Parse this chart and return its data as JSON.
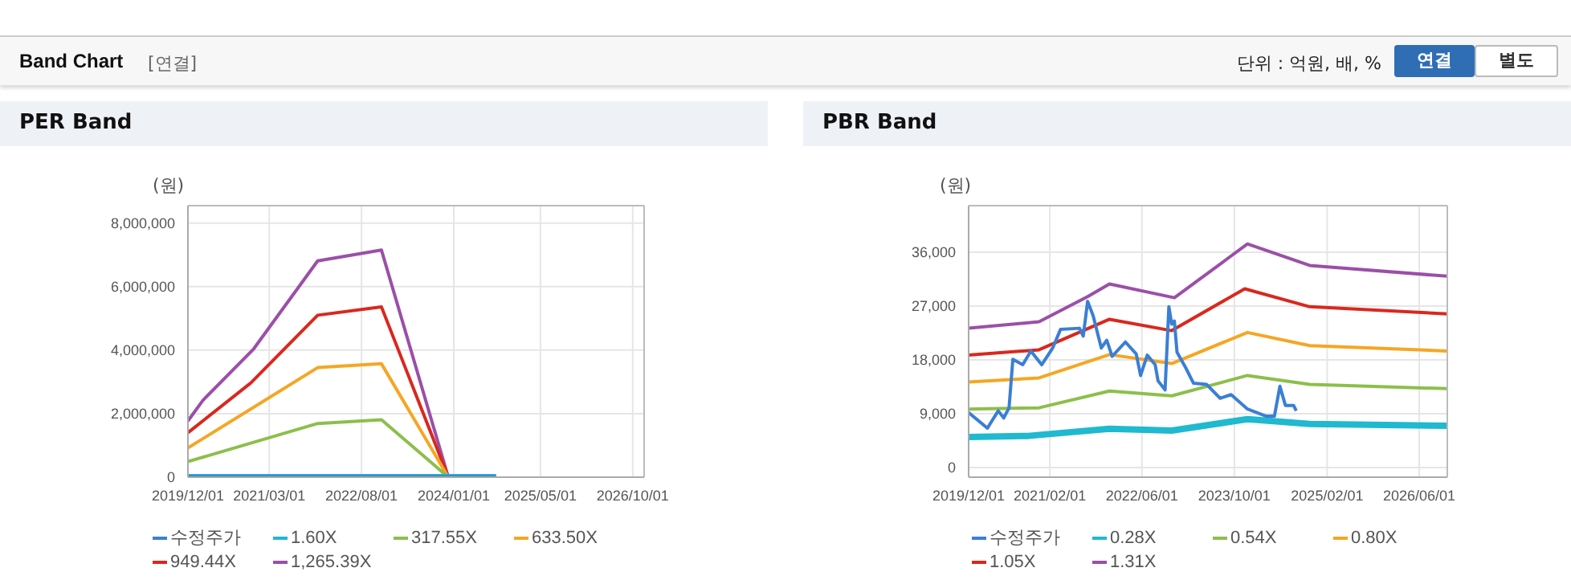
{
  "chart_data": [
    {
      "type": "line",
      "title": "PER Band",
      "ylabel": "(원)",
      "annotations": [
        "Band Chart",
        "[연결]",
        "단위 : 억원, 배, %",
        "연결",
        "별도"
      ],
      "xlim": [
        "2019-12-01",
        "2026-12-04"
      ],
      "xticks": [
        {
          "value": "2019-12-01",
          "label": "2019/12/01"
        },
        {
          "value": "2021-03-01",
          "label": "2021/03/01"
        },
        {
          "value": "2022-08-01",
          "label": "2022/08/01"
        },
        {
          "value": "2024-01-01",
          "label": "2024/01/01"
        },
        {
          "value": "2025-05-01",
          "label": "2025/05/01"
        },
        {
          "value": "2026-10-01",
          "label": "2026/10/01"
        }
      ],
      "ylim": [
        0,
        8550000
      ],
      "yticks": [
        0,
        {
          "value": 2000000,
          "label": "2,000,000"
        },
        {
          "value": 4000000,
          "label": "4,000,000"
        },
        {
          "value": 6000000,
          "label": "6,000,000"
        },
        {
          "value": 8000000,
          "label": "8,000,000"
        }
      ],
      "grid": true,
      "legend": "bottom",
      "marker": "none",
      "line_style": "solid",
      "series": [
        {
          "name": "수정주가",
          "color": "#3a7fd5",
          "x": [
            "2019-12-01",
            "2024-08-25"
          ],
          "values": [
            10000,
            10000
          ]
        },
        {
          "name": "1.60X",
          "color": "#1fb9d0",
          "x": [
            "2019-12-01",
            "2024-08-25"
          ],
          "values": [
            0,
            0
          ]
        },
        {
          "name": "317.55X",
          "color": "#8cbf4a",
          "x": [
            "2019-12-01",
            "2021-11-28",
            "2022-11-21",
            "2023-12-01"
          ],
          "values": [
            490000,
            1690000,
            1810000,
            0
          ]
        },
        {
          "name": "633.50X",
          "color": "#f5a623",
          "x": [
            "2019-12-01",
            "2021-11-28",
            "2022-11-21",
            "2023-12-01"
          ],
          "values": [
            920000,
            3450000,
            3570000,
            0
          ]
        },
        {
          "name": "949.44X",
          "color": "#d9281e",
          "x": [
            "2019-12-01",
            "2020-11-18",
            "2021-11-28",
            "2022-11-21",
            "2023-12-01"
          ],
          "values": [
            1400000,
            2970000,
            5100000,
            5360000,
            0
          ]
        },
        {
          "name": "1,265.39X",
          "color": "#9b4fa8",
          "x": [
            "2019-12-01",
            "2020-02-23",
            "2020-12-04",
            "2021-11-28",
            "2022-11-21",
            "2023-12-01"
          ],
          "values": [
            1770000,
            2420000,
            4040000,
            6810000,
            7150000,
            0
          ]
        }
      ]
    },
    {
      "type": "line",
      "title": "PBR Band",
      "ylabel": "(원)",
      "xlim": [
        "2019-12-01",
        "2026-10-27"
      ],
      "xticks": [
        {
          "value": "2019-12-01",
          "label": "2019/12/01"
        },
        {
          "value": "2021-02-01",
          "label": "2021/02/01"
        },
        {
          "value": "2022-06-01",
          "label": "2022/06/01"
        },
        {
          "value": "2023-10-01",
          "label": "2023/10/01"
        },
        {
          "value": "2025-02-01",
          "label": "2025/02/01"
        },
        {
          "value": "2026-06-01",
          "label": "2026/06/01"
        }
      ],
      "ylim": [
        -1600,
        43800
      ],
      "yticks": [
        0,
        {
          "value": 9000,
          "label": "9,000"
        },
        {
          "value": 18000,
          "label": "18,000"
        },
        {
          "value": 27000,
          "label": "27,000"
        },
        {
          "value": 36000,
          "label": "36,000"
        }
      ],
      "grid": true,
      "legend": "bottom",
      "marker": "none",
      "line_style": "solid",
      "series": [
        {
          "name": "수정주가",
          "color": "#3a7fd5",
          "x": [
            "2019-12-01",
            "2020-03-09",
            "2020-05-05",
            "2020-06-03",
            "2020-07-01",
            "2020-07-21",
            "2020-09-11",
            "2020-10-24",
            "2020-12-20",
            "2021-02-16",
            "2021-03-29",
            "2021-07-07",
            "2021-07-27",
            "2021-08-19",
            "2021-09-17",
            "2021-10-30",
            "2021-11-28",
            "2021-12-26",
            "2022-03-06",
            "2022-05-02",
            "2022-05-25",
            "2022-06-29",
            "2022-08-10",
            "2022-08-25",
            "2022-10-01",
            "2022-10-21",
            "2022-11-05",
            "2022-11-19",
            "2022-12-03",
            "2023-01-16",
            "2023-02-28",
            "2023-05-08",
            "2023-07-18",
            "2023-09-14",
            "2023-12-09",
            "2024-03-17",
            "2024-04-29",
            "2024-05-28",
            "2024-06-26",
            "2024-08-08",
            "2024-08-22"
          ],
          "values": [
            9200,
            6600,
            9500,
            8300,
            10000,
            18100,
            17200,
            19500,
            17200,
            20000,
            23100,
            23300,
            22000,
            27800,
            25400,
            20000,
            21300,
            18600,
            21000,
            19000,
            15400,
            18800,
            17200,
            14500,
            13000,
            26900,
            24000,
            24500,
            19300,
            16800,
            14100,
            13900,
            11600,
            12200,
            9800,
            8600,
            8600,
            13600,
            10400,
            10400,
            9500
          ]
        },
        {
          "name": "0.28X",
          "color": "#1fb9d0",
          "x": [
            "2019-12-01",
            "2020-10-10",
            "2021-12-12",
            "2022-11-05",
            "2023-12-09",
            "2024-11-01",
            "2026-10-27"
          ],
          "values": [
            5100,
            5300,
            6500,
            6200,
            8100,
            7300,
            7000
          ]
        },
        {
          "name": "0.54X",
          "color": "#8cbf4a",
          "x": [
            "2019-12-01",
            "2020-12-06",
            "2021-12-12",
            "2022-11-05",
            "2023-12-09",
            "2024-11-01",
            "2026-10-27"
          ],
          "values": [
            9800,
            10000,
            12800,
            12000,
            15400,
            13900,
            13200
          ]
        },
        {
          "name": "0.80X",
          "color": "#f5a623",
          "x": [
            "2019-12-01",
            "2020-12-06",
            "2021-12-12",
            "2022-11-05",
            "2023-12-09",
            "2024-11-01",
            "2026-10-27"
          ],
          "values": [
            14300,
            15000,
            18900,
            17400,
            22600,
            20400,
            19500
          ]
        },
        {
          "name": "1.05X",
          "color": "#d9281e",
          "x": [
            "2019-12-01",
            "2020-12-06",
            "2021-12-12",
            "2022-11-05",
            "2023-11-25",
            "2024-11-01",
            "2026-10-27"
          ],
          "values": [
            18800,
            19700,
            24800,
            22900,
            29900,
            26900,
            25700
          ]
        },
        {
          "name": "1.31X",
          "color": "#9b4fa8",
          "x": [
            "2019-12-01",
            "2020-12-06",
            "2021-08-19",
            "2021-12-12",
            "2022-11-19",
            "2023-12-09",
            "2024-11-01",
            "2026-10-27"
          ],
          "values": [
            23300,
            24400,
            28600,
            30700,
            28400,
            37400,
            33800,
            32000
          ]
        }
      ]
    }
  ]
}
